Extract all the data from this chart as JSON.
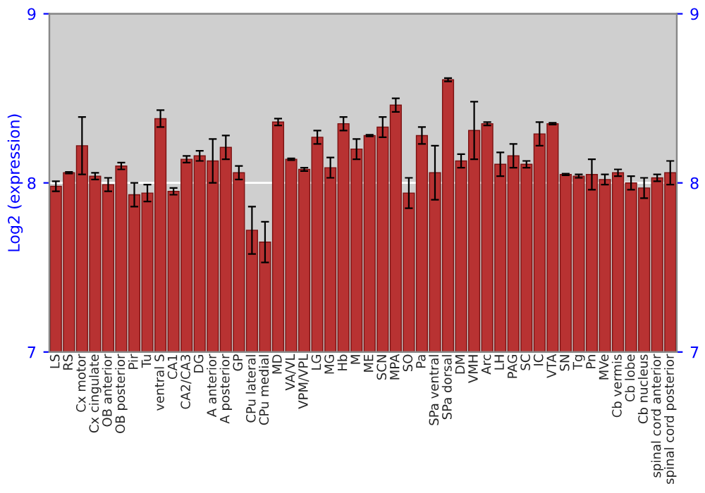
{
  "chart_data": {
    "type": "bar",
    "ylabel": "Log2 (expression)",
    "categories": [
      "LS",
      "RS",
      "Cx motor",
      "Cx cingulate",
      "OB anterior",
      "OB posterior",
      "Pir",
      "Tu",
      "ventral S",
      "CA1",
      "CA2/CA3",
      "DG",
      "A anterior",
      "A posterior",
      "GP",
      "CPu lateral",
      "CPu medial",
      "MD",
      "VA/VL",
      "VPM/VPL",
      "LG",
      "MG",
      "Hb",
      "M",
      "ME",
      "SCN",
      "MPA",
      "SO",
      "Pa",
      "SPa ventral",
      "SPa dorsal",
      "DM",
      "VMH",
      "Arc",
      "LH",
      "PAG",
      "SC",
      "IC",
      "VTA",
      "SN",
      "Tg",
      "Pn",
      "MVe",
      "Cb vermis",
      "Cb lobe",
      "Cb nucleus",
      "spinal cord anterior",
      "spinal cord posterior"
    ],
    "values": [
      7.98,
      8.06,
      8.22,
      8.04,
      7.99,
      8.1,
      7.93,
      7.94,
      8.38,
      7.95,
      8.14,
      8.16,
      8.13,
      8.21,
      8.06,
      7.72,
      7.65,
      8.36,
      8.14,
      8.08,
      8.27,
      8.09,
      8.35,
      8.2,
      8.28,
      8.33,
      8.46,
      7.94,
      8.28,
      8.06,
      8.61,
      8.13,
      8.31,
      8.35,
      8.11,
      8.16,
      8.11,
      8.29,
      8.35,
      8.05,
      8.04,
      8.05,
      8.02,
      8.06,
      8.0,
      7.97,
      8.03,
      8.06
    ],
    "errors": [
      0.03,
      0.005,
      0.17,
      0.02,
      0.04,
      0.02,
      0.07,
      0.05,
      0.05,
      0.02,
      0.02,
      0.03,
      0.13,
      0.07,
      0.04,
      0.14,
      0.12,
      0.02,
      0.005,
      0.01,
      0.04,
      0.06,
      0.04,
      0.06,
      0.005,
      0.06,
      0.04,
      0.09,
      0.05,
      0.16,
      0.01,
      0.04,
      0.17,
      0.01,
      0.07,
      0.07,
      0.02,
      0.07,
      0.005,
      0.005,
      0.01,
      0.09,
      0.03,
      0.02,
      0.04,
      0.06,
      0.02,
      0.07
    ],
    "color": "#b83232",
    "ylim": [
      7,
      9
    ],
    "yticks": [
      7,
      8,
      9
    ],
    "y2lim": [
      7,
      9
    ],
    "y2ticks": [
      7,
      8,
      9
    ],
    "grid": "y"
  }
}
